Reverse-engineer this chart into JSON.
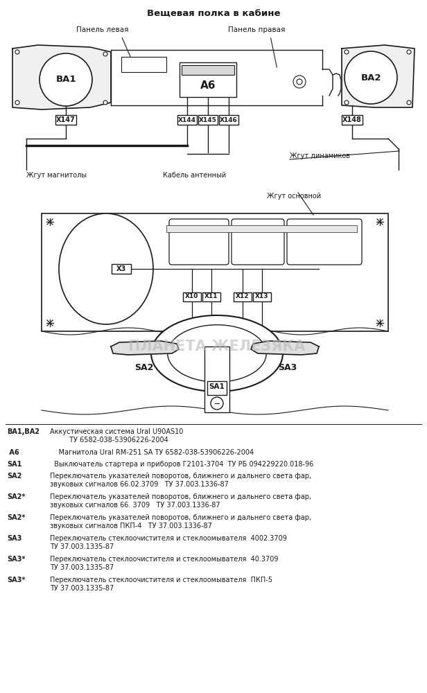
{
  "title": "Вещевая полка в кабине",
  "label_panel_left": "Панель левая",
  "label_panel_right": "Панель правая",
  "label_magnitola": "Жгут магнитолы",
  "label_antenna": "Кабель антенный",
  "label_dynamics": "Жгут динамиков",
  "label_main": "Жгут основной",
  "bg_color": "#ffffff",
  "line_color": "#1a1a1a",
  "watermark": "ПЛАНЕТА ЖЕЛЕЗЯКА",
  "legend_entries": [
    {
      "code": "ВА1,ВА2",
      "desc": "Аккустическая система Ural U90AS10\n         ТУ 6582-038-53906226-2004",
      "lines": 2
    },
    {
      "code": " А6",
      "desc": "    Магнитола Ural RM-251 SA ТУ 6582-038-53906226-2004",
      "lines": 1
    },
    {
      "code": "SA1",
      "desc": "  Выключатель стартера и приборов Г2101-3704  ТУ РБ 094229220.018-96",
      "lines": 1
    },
    {
      "code": "SA2",
      "desc": "Переключатель указателей поворотов, ближнего и дальнего света фар,\nзвуковых сигналов 66.02.3709   ТУ 37.003.1336-87",
      "lines": 2
    },
    {
      "code": "SA2*",
      "desc": "Переключатель указателей поворотов, ближнего и дальнего света фар,\nзвуковых сигналов 66. 3709   ТУ 37.003.1336-87",
      "lines": 2
    },
    {
      "code": "SA2*",
      "desc": "Переключатель указателей поворотов, ближнего и дальнего света фар,\nзвуковых сигналов ПКП-4   ТУ 37.003.1336-87",
      "lines": 2
    },
    {
      "code": "SA3",
      "desc": "Переключатель стеклоочистителя и стеклоомывателя  4002.3709\nТУ 37.003.1335-87",
      "lines": 2
    },
    {
      "code": "SA3*",
      "desc": "Переключатель стеклоочистителя и стеклоомывателя  40.3709\nТУ 37.003.1335-87",
      "lines": 2
    },
    {
      "code": "SA3*",
      "desc": "Переключатель стеклоочистителя и стеклоомывателя  ПКП-5\nТУ 37.003.1335-87",
      "lines": 2
    }
  ]
}
